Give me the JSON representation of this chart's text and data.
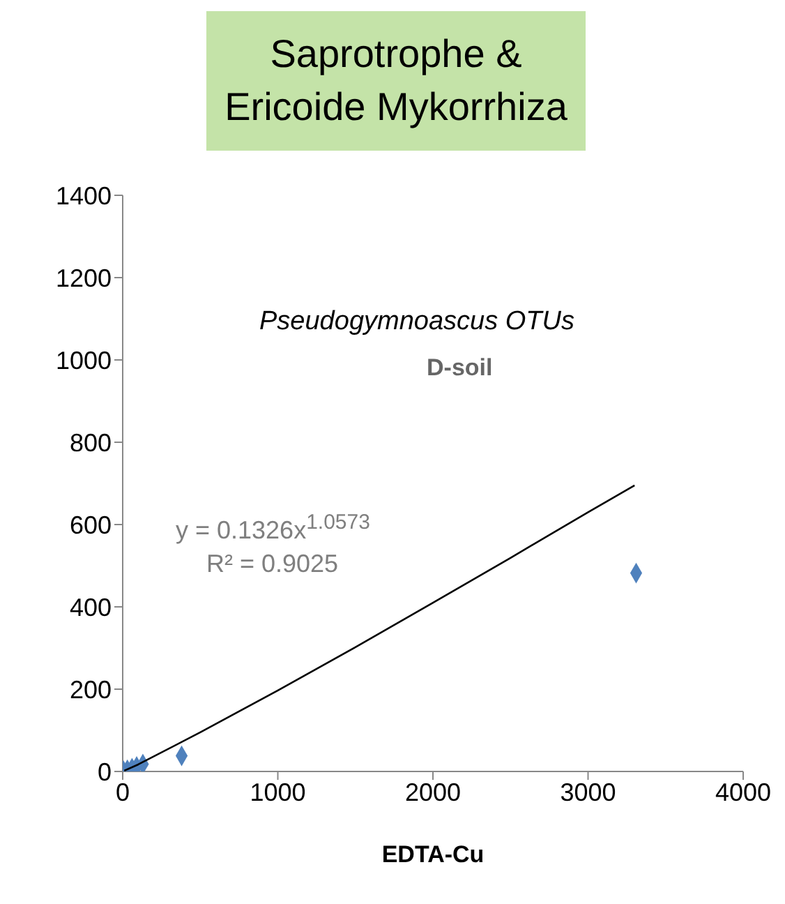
{
  "chart_data": {
    "type": "scatter",
    "title": "Saprotrophe & Ericoide Mykorrhiza",
    "xlabel": "EDTA-Cu",
    "annotations": [
      "Pseudogymnoascus OTUs",
      "D-soil",
      "y = 0.1326x$^{1.0573}$",
      "R² = 0.9025"
    ],
    "xlim": [
      0,
      4000
    ],
    "xticks": [
      0,
      1000,
      2000,
      3000,
      4000
    ],
    "ylim": [
      0,
      1400
    ],
    "yticks": [
      0,
      200,
      400,
      600,
      800,
      1000,
      1200,
      1400
    ],
    "grid": false,
    "marker": "diamond",
    "series": [
      {
        "type": "scatter",
        "color": "#4f81bd",
        "x": [
          5,
          30,
          60,
          90,
          130,
          380,
          3310
        ],
        "values": [
          2,
          4,
          8,
          12,
          18,
          38,
          482
        ]
      },
      {
        "type": "line",
        "color": "#000000",
        "marker": "none",
        "x": [
          10,
          100,
          500,
          1000,
          1500,
          2000,
          2500,
          3000,
          3300
        ],
        "values": [
          2,
          17,
          95,
          197,
          302,
          410,
          519,
          630,
          695
        ]
      }
    ]
  }
}
